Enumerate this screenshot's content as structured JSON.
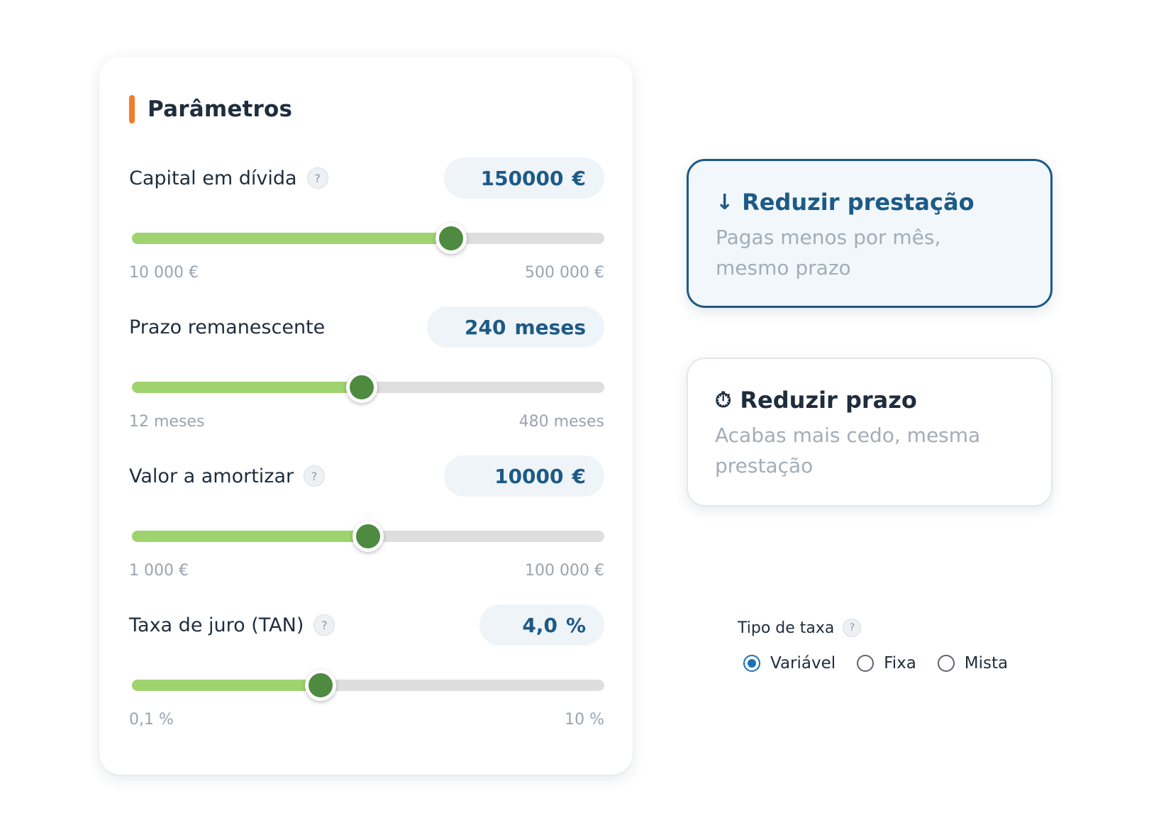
{
  "colors": {
    "accent_bar": "#f07d2b",
    "primary": "#1d5a86",
    "slider_fill": "#9ed36f",
    "slider_thumb": "#4e8a3f",
    "slider_track": "#dedede"
  },
  "parameters": {
    "title": "Parâmetros",
    "items": [
      {
        "label": "Capital em dívida",
        "has_help": true,
        "value": "150000",
        "unit": "€",
        "min_label": "10 000 €",
        "max_label": "500 000 €",
        "min": 10000,
        "max": 500000,
        "current": 150000,
        "fill_fraction": 0.675
      },
      {
        "label": "Prazo remanescente",
        "has_help": false,
        "value": "240",
        "unit": "meses",
        "min_label": "12 meses",
        "max_label": "480 meses",
        "min": 12,
        "max": 480,
        "current": 240,
        "fill_fraction": 0.487
      },
      {
        "label": "Valor a amortizar",
        "has_help": true,
        "value": "10000",
        "unit": "€",
        "min_label": "1 000 €",
        "max_label": "100 000 €",
        "min": 1000,
        "max": 100000,
        "current": 10000,
        "fill_fraction": 0.5
      },
      {
        "label": "Taxa de juro (TAN)",
        "has_help": true,
        "value": "4,0",
        "unit": "%",
        "min_label": "0,1 %",
        "max_label": "10 %",
        "min": 0.1,
        "max": 10,
        "current": 4.0,
        "fill_fraction": 0.4
      }
    ]
  },
  "options": {
    "reduce_payment": {
      "icon": "arrow-down-icon",
      "icon_glyph": "↓",
      "title": "Reduzir prestação",
      "description": "Pagas menos por mês, mesmo prazo",
      "selected": true
    },
    "reduce_term": {
      "icon": "stopwatch-icon",
      "icon_glyph": "⏱",
      "title": "Reduzir prazo",
      "description": "Acabas mais cedo, mesma prestação",
      "selected": false
    }
  },
  "rate_type": {
    "label": "Tipo de taxa",
    "help_glyph": "?",
    "options": [
      "Variável",
      "Fixa",
      "Mista"
    ],
    "selected": "Variável"
  },
  "help_glyph": "?"
}
